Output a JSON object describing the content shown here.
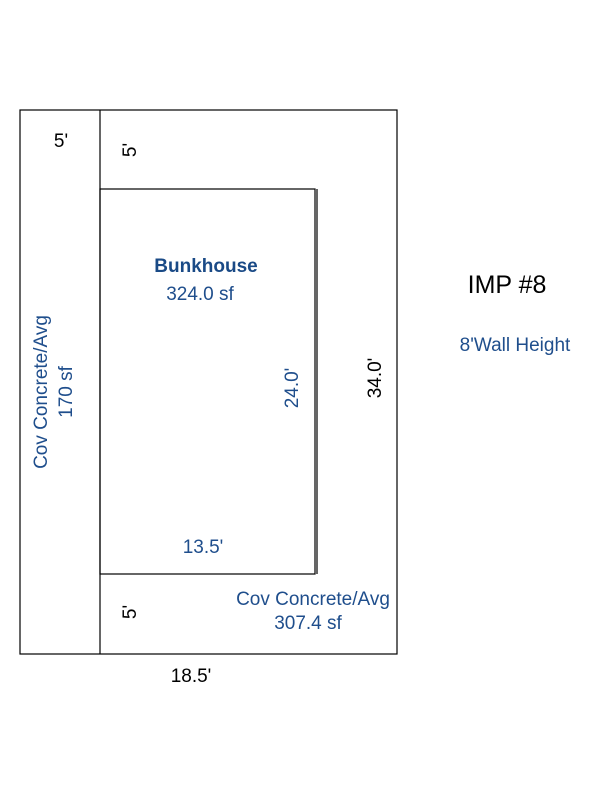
{
  "colors": {
    "label_blue": "#1f4e8c",
    "title_blue": "#1a4a86",
    "line": "#000000",
    "text_dark": "#000000"
  },
  "improvement": {
    "id_label": "IMP #8",
    "wall_height": "8'Wall Height"
  },
  "bunkhouse": {
    "name": "Bunkhouse",
    "area": "324.0 sf",
    "height_dim": "24.0'",
    "width_dim": "13.5'"
  },
  "left_porch": {
    "name": "Cov Concrete/Avg",
    "area": "170 sf",
    "top_width_dim": "5'"
  },
  "wrap_porch": {
    "name": "Cov Concrete/Avg",
    "area": "307.4 sf",
    "top_depth_dim": "5'",
    "bottom_depth_dim": "5'"
  },
  "overall": {
    "height_dim": "34.0'",
    "width_dim": "18.5'"
  }
}
